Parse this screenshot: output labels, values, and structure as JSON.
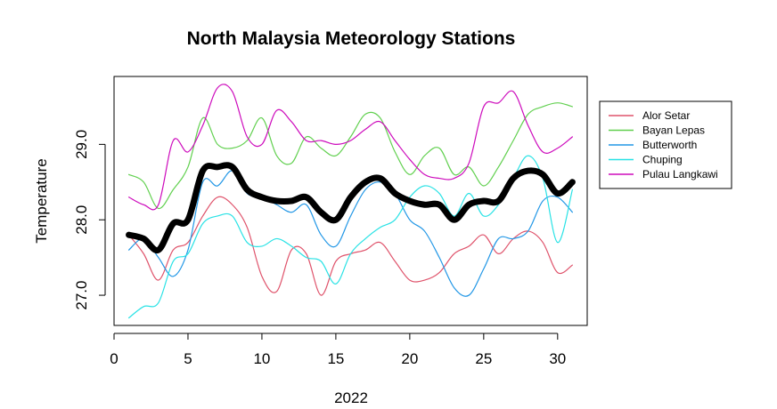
{
  "chart_data": {
    "type": "line",
    "title": "North Malaysia Meteorology Stations",
    "xlabel": "2022",
    "ylabel": "Temperature",
    "xlim": [
      0,
      32
    ],
    "ylim": [
      26.6,
      29.9
    ],
    "x_ticks": [
      0,
      5,
      10,
      15,
      20,
      25,
      30
    ],
    "x_tick_labels": [
      "0",
      "5",
      "10",
      "15",
      "20",
      "25",
      "30"
    ],
    "y_ticks": [
      27.0,
      28.0,
      29.0
    ],
    "y_tick_labels": [
      "27.0",
      "28.0",
      "29.0"
    ],
    "grid": false,
    "legend_position": "right",
    "x": [
      1,
      2,
      3,
      4,
      5,
      6,
      7,
      8,
      9,
      10,
      11,
      12,
      13,
      14,
      15,
      16,
      17,
      18,
      19,
      20,
      21,
      22,
      23,
      24,
      25,
      26,
      27,
      28,
      29,
      30,
      31
    ],
    "series": [
      {
        "name": "Alor Setar",
        "color": "#df536b",
        "values": [
          27.8,
          27.55,
          27.2,
          27.6,
          27.7,
          28.05,
          28.3,
          28.2,
          27.9,
          27.25,
          27.05,
          27.6,
          27.55,
          27.0,
          27.45,
          27.55,
          27.6,
          27.7,
          27.45,
          27.2,
          27.2,
          27.3,
          27.55,
          27.65,
          27.8,
          27.55,
          27.75,
          27.85,
          27.7,
          27.3,
          27.4
        ]
      },
      {
        "name": "Bayan Lepas",
        "color": "#61d04f",
        "values": [
          28.6,
          28.5,
          28.15,
          28.4,
          28.7,
          29.35,
          29.0,
          28.95,
          29.05,
          29.35,
          28.85,
          28.75,
          29.1,
          28.95,
          28.85,
          29.1,
          29.4,
          29.35,
          28.9,
          28.6,
          28.85,
          28.95,
          28.6,
          28.7,
          28.45,
          28.7,
          29.05,
          29.4,
          29.5,
          29.55,
          29.5
        ]
      },
      {
        "name": "Butterworth",
        "color": "#2297e6",
        "values": [
          27.6,
          27.75,
          27.5,
          27.25,
          27.6,
          28.5,
          28.45,
          28.65,
          28.35,
          28.3,
          28.2,
          28.1,
          28.2,
          27.8,
          27.65,
          28.05,
          28.4,
          28.5,
          28.35,
          28.0,
          27.85,
          27.5,
          27.1,
          27.0,
          27.35,
          27.75,
          27.75,
          27.85,
          28.25,
          28.3,
          28.1
        ]
      },
      {
        "name": "Chuping",
        "color": "#28e2e5",
        "values": [
          26.7,
          26.85,
          26.9,
          27.45,
          27.55,
          27.95,
          28.05,
          28.05,
          27.7,
          27.65,
          27.75,
          27.65,
          27.5,
          27.45,
          27.15,
          27.55,
          27.75,
          27.9,
          28.0,
          28.3,
          28.45,
          28.35,
          28.05,
          28.35,
          28.05,
          28.2,
          28.55,
          28.85,
          28.55,
          27.7,
          28.4
        ]
      },
      {
        "name": "Pulau Langkawi",
        "color": "#cd0bbc",
        "values": [
          28.3,
          28.2,
          28.2,
          29.05,
          28.9,
          29.25,
          29.75,
          29.7,
          29.1,
          29.0,
          29.45,
          29.3,
          29.05,
          29.05,
          29.0,
          29.05,
          29.2,
          29.3,
          29.05,
          28.8,
          28.6,
          28.55,
          28.55,
          28.75,
          29.5,
          29.55,
          29.7,
          29.25,
          28.9,
          28.95,
          29.1
        ]
      },
      {
        "name": "",
        "color": "#000000",
        "thick": true,
        "values": [
          27.8,
          27.75,
          27.6,
          27.95,
          28.0,
          28.65,
          28.7,
          28.7,
          28.4,
          28.3,
          28.25,
          28.25,
          28.3,
          28.1,
          28.0,
          28.3,
          28.5,
          28.55,
          28.35,
          28.25,
          28.2,
          28.2,
          28.0,
          28.2,
          28.25,
          28.25,
          28.55,
          28.65,
          28.6,
          28.35,
          28.5
        ]
      }
    ]
  }
}
